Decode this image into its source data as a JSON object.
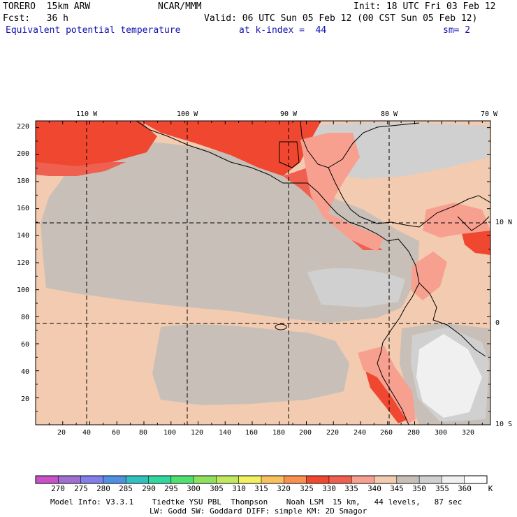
{
  "header": {
    "model": "TORERO  15km ARW",
    "org": "NCAR/MMM",
    "init": "Init: 18 UTC Fri 03 Feb 12",
    "fcst": "Fcst:   36 h",
    "valid": "Valid: 06 UTC Sun 05 Feb 12 (00 CST Sun 05 Feb 12)",
    "field": "Equivalent potential temperature",
    "level": "at k-index =  44",
    "smooth": "sm= 2"
  },
  "map": {
    "lon_labels": [
      "110 W",
      "100 W",
      "90 W",
      "80 W",
      "70 W"
    ],
    "lat_labels": [
      "10 N",
      "0",
      "10 S"
    ],
    "x_ticks": [
      "20",
      "40",
      "60",
      "80",
      "100",
      "120",
      "140",
      "160",
      "180",
      "200",
      "220",
      "240",
      "260",
      "280",
      "300",
      "320"
    ],
    "y_ticks": [
      "220",
      "200",
      "180",
      "160",
      "140",
      "120",
      "100",
      "80",
      "60",
      "40",
      "20"
    ]
  },
  "colorbar": {
    "labels": [
      "270",
      "275",
      "280",
      "285",
      "290",
      "295",
      "300",
      "305",
      "310",
      "315",
      "320",
      "325",
      "330",
      "335",
      "340",
      "345",
      "350",
      "355",
      "360"
    ],
    "unit": "K",
    "colors": [
      "#c850c8",
      "#a070d0",
      "#8080e8",
      "#5090e0",
      "#30c0c0",
      "#30d8a0",
      "#50e070",
      "#90e060",
      "#c0e860",
      "#f0f060",
      "#f8c060",
      "#f89050",
      "#f04830",
      "#f06050",
      "#f8a090",
      "#f2cbb0",
      "#c8c0b8",
      "#d0d0d0",
      "#f0f0f0",
      "#ffffff"
    ]
  },
  "footer": {
    "line1": "Model Info: V3.3.1    Tiedtke YSU PBL  Thompson    Noah LSM  15 km,   44 levels,   87 sec",
    "line2": "LW: Godd SW: Goddard DIFF: simple KM: 2D Smagor"
  }
}
